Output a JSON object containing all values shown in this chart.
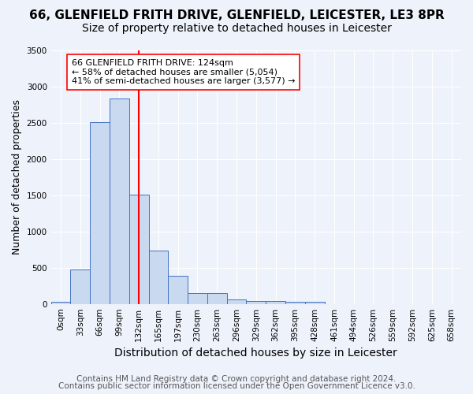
{
  "title": "66, GLENFIELD FRITH DRIVE, GLENFIELD, LEICESTER, LE3 8PR",
  "subtitle": "Size of property relative to detached houses in Leicester",
  "xlabel": "Distribution of detached houses by size in Leicester",
  "ylabel": "Number of detached properties",
  "bin_labels": [
    "0sqm",
    "33sqm",
    "66sqm",
    "99sqm",
    "132sqm",
    "165sqm",
    "197sqm",
    "230sqm",
    "263sqm",
    "296sqm",
    "329sqm",
    "362sqm",
    "395sqm",
    "428sqm",
    "461sqm",
    "494sqm",
    "526sqm",
    "559sqm",
    "592sqm",
    "625sqm",
    "658sqm"
  ],
  "bin_counts": [
    25,
    480,
    2510,
    2840,
    1510,
    740,
    390,
    145,
    145,
    60,
    40,
    40,
    30,
    25,
    0,
    0,
    0,
    0,
    0,
    0,
    0
  ],
  "bar_color": "#c8d9f0",
  "bar_edge_color": "#4472c4",
  "vertical_line_x": 4,
  "vertical_line_color": "red",
  "annotation_text": "66 GLENFIELD FRITH DRIVE: 124sqm\n← 58% of detached houses are smaller (5,054)\n41% of semi-detached houses are larger (3,577) →",
  "annotation_box_color": "white",
  "annotation_box_edge": "red",
  "ylim": [
    0,
    3500
  ],
  "yticks": [
    0,
    500,
    1000,
    1500,
    2000,
    2500,
    3000,
    3500
  ],
  "footer1": "Contains HM Land Registry data © Crown copyright and database right 2024.",
  "footer2": "Contains public sector information licensed under the Open Government Licence v3.0.",
  "bg_color": "#eef2fb",
  "plot_bg_color": "#eef2fb",
  "title_fontsize": 11,
  "subtitle_fontsize": 10,
  "xlabel_fontsize": 10,
  "ylabel_fontsize": 9,
  "tick_fontsize": 7.5,
  "footer_fontsize": 7.5
}
